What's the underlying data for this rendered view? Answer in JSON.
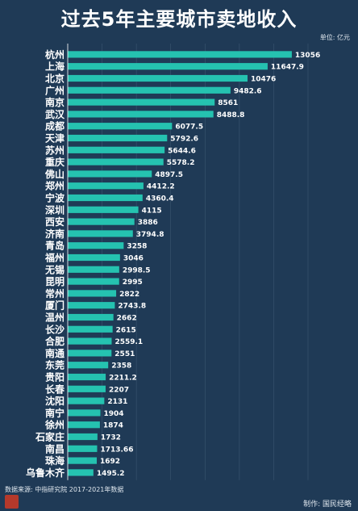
{
  "header": {
    "title": "过去5年主要城市卖地收入",
    "unit": "单位: 亿元"
  },
  "footer": {
    "source": "数据来源: 中指研究院 2017-2021年数据",
    "made_by": "制作: 国民经略"
  },
  "colors": {
    "background": "#1f3a56",
    "bar": "#25c2b0",
    "grid": "#3b5670",
    "text": "#ffffff"
  },
  "chart_data": {
    "type": "bar",
    "orientation": "horizontal",
    "categories": [
      "杭州",
      "上海",
      "北京",
      "广州",
      "南京",
      "武汉",
      "成都",
      "天津",
      "苏州",
      "重庆",
      "佛山",
      "郑州",
      "宁波",
      "深圳",
      "西安",
      "济南",
      "青岛",
      "福州",
      "无锡",
      "昆明",
      "常州",
      "厦门",
      "温州",
      "长沙",
      "合肥",
      "南通",
      "东莞",
      "贵阳",
      "长春",
      "沈阳",
      "南宁",
      "徐州",
      "石家庄",
      "南昌",
      "珠海",
      "乌鲁木齐"
    ],
    "values": [
      13056,
      11647.9,
      10476,
      9482.6,
      8561,
      8488.8,
      6077.5,
      5792.6,
      5644.6,
      5578.2,
      4897.5,
      4412.2,
      4360.4,
      4115,
      3886,
      3794.8,
      3258,
      3046,
      2998.5,
      2995,
      2822,
      2743.8,
      2662,
      2615,
      2559.1,
      2551,
      2358,
      2211.2,
      2207,
      2131,
      1904,
      1874,
      1732,
      1713.66,
      1692,
      1495.2
    ],
    "value_labels": [
      "13056",
      "11647.9",
      "10476",
      "9482.6",
      "8561",
      "8488.8",
      "6077.5",
      "5792.6",
      "5644.6",
      "5578.2",
      "4897.5",
      "4412.2",
      "4360.4",
      "4115",
      "3886",
      "3794.8",
      "3258",
      "3046",
      "2998.5",
      "2995",
      "2822",
      "2743.8",
      "2662",
      "2615",
      "2559.1",
      "2551",
      "2358",
      "2211.2",
      "2207",
      "2131",
      "1904",
      "1874",
      "1732",
      "1713.66",
      "1692",
      "1495.2"
    ],
    "xlim": [
      0,
      14000
    ],
    "xticks": [
      0,
      2000,
      4000,
      6000,
      8000,
      10000,
      12000,
      14000
    ],
    "grid": true
  }
}
